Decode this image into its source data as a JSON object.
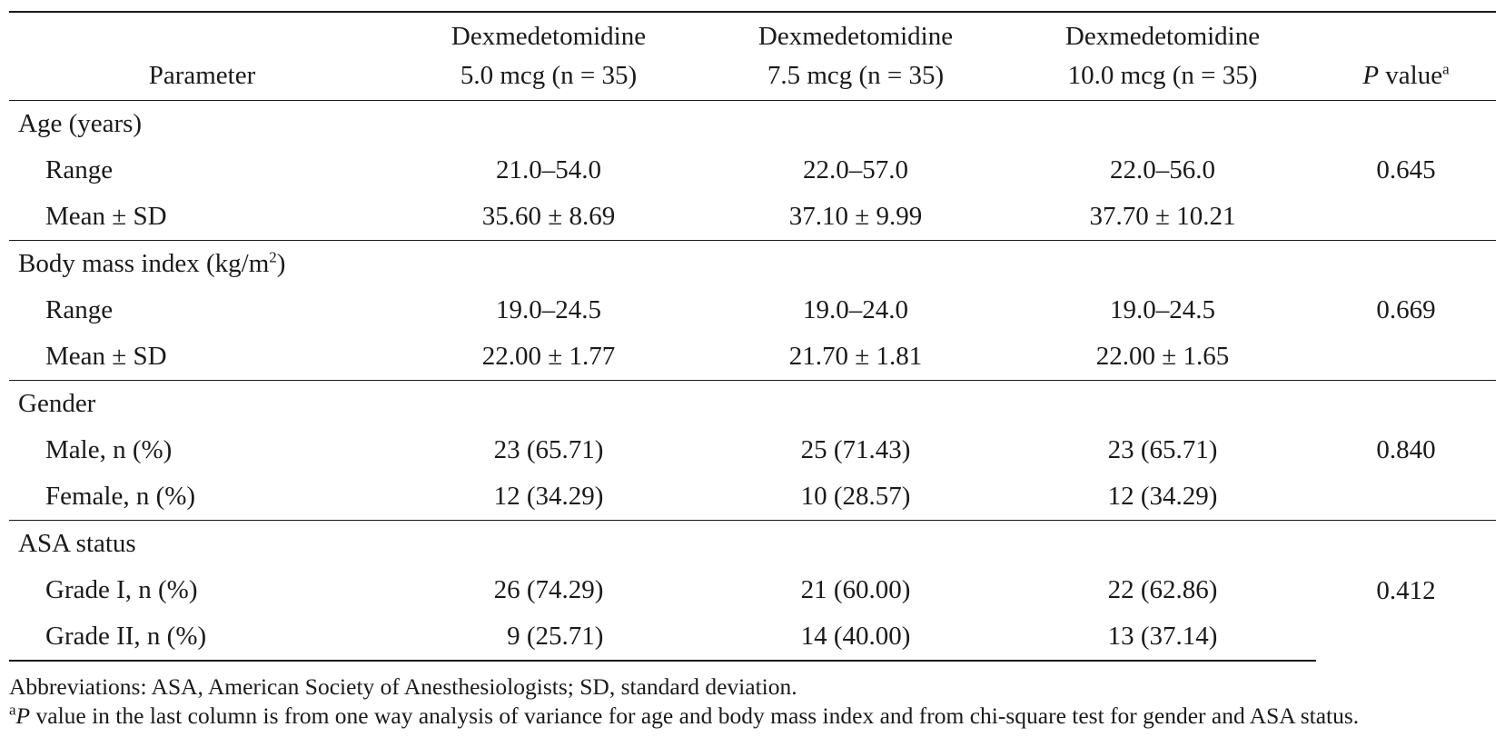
{
  "table": {
    "header": {
      "parameter": "Parameter",
      "groups": [
        {
          "line1": "Dexmedetomidine",
          "line2": "5.0 mcg (n = 35)"
        },
        {
          "line1": "Dexmedetomidine",
          "line2": "7.5 mcg (n = 35)"
        },
        {
          "line1": "Dexmedetomidine",
          "line2": "10.0 mcg (n = 35)"
        }
      ],
      "p_italic": "P",
      "p_rest": " value",
      "p_sup": "a"
    },
    "sections": [
      {
        "label": "Age (years)",
        "label_sup": "",
        "label_tail": "",
        "p_value": "0.645",
        "rows": [
          {
            "label": "Range",
            "values": [
              "21.0–54.0",
              "22.0–57.0",
              "22.0–56.0"
            ]
          },
          {
            "label": "Mean ± SD",
            "values": [
              "35.60 ± 8.69",
              "37.10 ± 9.99",
              "37.70 ± 10.21"
            ]
          }
        ]
      },
      {
        "label": "Body mass index (kg/m",
        "label_sup": "2",
        "label_tail": ")",
        "p_value": "0.669",
        "rows": [
          {
            "label": "Range",
            "values": [
              "19.0–24.5",
              "19.0–24.0",
              "19.0–24.5"
            ]
          },
          {
            "label": "Mean ± SD",
            "values": [
              "22.00 ± 1.77",
              "21.70 ± 1.81",
              "22.00 ± 1.65"
            ]
          }
        ]
      },
      {
        "label": "Gender",
        "label_sup": "",
        "label_tail": "",
        "p_value": "0.840",
        "rows": [
          {
            "label": "Male, n (%)",
            "values": [
              "23 (65.71)",
              "25 (71.43)",
              "23 (65.71)"
            ]
          },
          {
            "label": "Female, n (%)",
            "values": [
              "12 (34.29)",
              "10 (28.57)",
              "12 (34.29)"
            ]
          }
        ]
      },
      {
        "label": "ASA status",
        "label_sup": "",
        "label_tail": "",
        "p_value": "0.412",
        "rows": [
          {
            "label": "Grade I, n (%)",
            "values": [
              "26 (74.29)",
              "21 (60.00)",
              "22 (62.86)"
            ]
          },
          {
            "label": "Grade II, n (%)",
            "values": [
              "  9 (25.71)",
              "14 (40.00)",
              "13 (37.14)"
            ]
          }
        ]
      }
    ]
  },
  "footnotes": {
    "abbreviations": "Abbreviations: ASA, American Society of Anesthesiologists; SD, standard deviation.",
    "note_sup": "a",
    "note_italic": "P",
    "note_rest": " value in the last column is from one way analysis of variance for age and body mass index and from chi-square test for gender and ASA status."
  }
}
